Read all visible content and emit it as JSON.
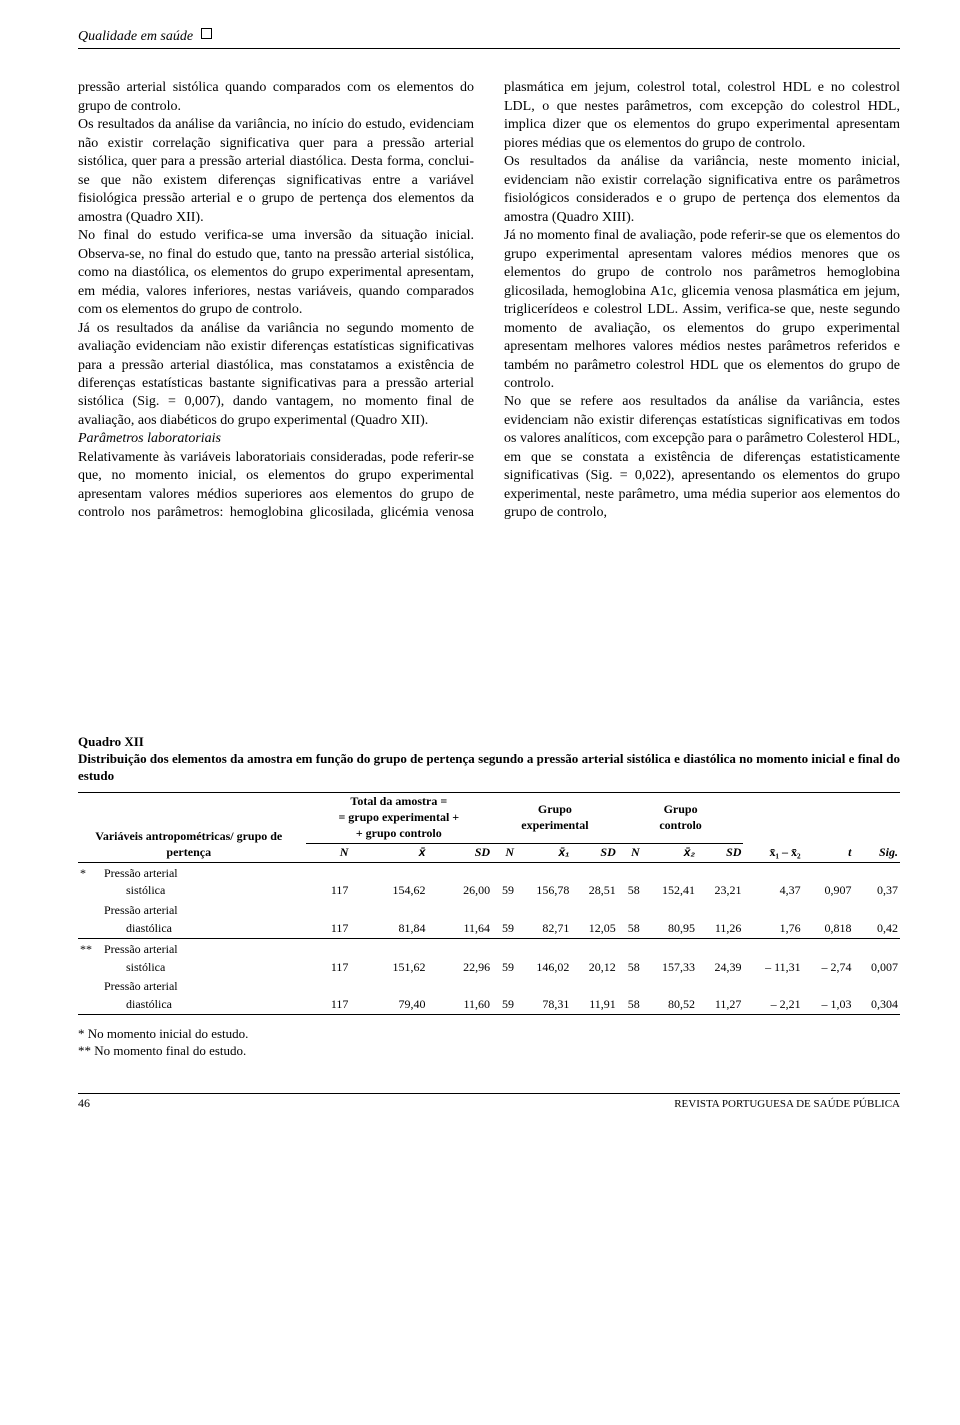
{
  "header": {
    "running": "Qualidade em saúde"
  },
  "body": {
    "p1": "pressão arterial sistólica quando comparados com os elementos do grupo de controlo.",
    "p2": "Os resultados da análise da variância, no início do estudo, evidenciam não existir correlação significativa quer para a pressão arterial sistólica, quer para a pressão arterial diastólica. Desta forma, conclui-se que não existem diferenças significativas entre a variável fisiológica pressão arterial e o grupo de pertença dos elementos da amostra (Quadro XII).",
    "p3": "No final do estudo verifica-se uma inversão da situação inicial. Observa-se, no final do estudo que, tanto na pressão arterial sistólica, como na diastólica, os elementos do grupo experimental apresentam, em média, valores inferiores, nestas variáveis, quando comparados com os elementos do grupo de controlo.",
    "p4": "Já os resultados da análise da variância no segundo momento de avaliação evidenciam não existir diferenças estatísticas significativas para a pressão arterial diastólica, mas constatamos a existência de diferenças estatísticas bastante significativas para a pressão arterial sistólica (Sig. = 0,007), dando vantagem, no momento final de avaliação, aos diabéticos do grupo experimental (Quadro XII).",
    "p5": "Parâmetros laboratoriais",
    "p6a": "Relativamente às variáveis laboratoriais consideradas, pode referir-se que, no momento inicial, os elementos do grupo experimental apresentam valores médios superiores aos elementos do grupo de con",
    "p6b": "trolo nos parâmetros: hemoglobina glicosilada, glicémia venosa plasmática em jejum, colestrol total, colestrol HDL e no colestrol LDL, o que nestes parâmetros, com excepção do colestrol HDL, implica dizer que os elementos do grupo experimental apresentam piores médias que os elementos do grupo de controlo.",
    "p7": "Os resultados da análise da variância, neste momento inicial, evidenciam não existir correlação significativa entre os parâmetros fisiológicos considerados e o grupo de pertença dos elementos da amostra (Quadro XIII).",
    "p8": "Já no momento final de avaliação, pode referir-se que os elementos do grupo experimental apresentam valores médios menores que os elementos do grupo de controlo nos parâmetros hemoglobina glicosilada, hemoglobina A1c, glicemia venosa plasmática em jejum, triglicerídeos e colestrol LDL. Assim, verifica-se que, neste segundo momento de avaliação, os elementos do grupo experimental apresentam melhores valores médios nestes parâmetros referidos e também no parâmetro colestrol HDL que os elementos do grupo de controlo.",
    "p9": "No que se refere aos resultados da análise da variância, estes evidenciam não existir diferenças estatísticas significativas em todos os valores analíticos, com excepção para o parâmetro Colesterol HDL, em que se constata a existência de diferenças estatisticamente significativas (Sig. = 0,022), apresentando os elementos do grupo experimental, neste parâmetro, uma média superior aos elementos do grupo de controlo,"
  },
  "table": {
    "title": "Quadro XII",
    "caption": "Distribuição dos elementos da amostra em função do grupo de pertença segundo a pressão arterial sistólica e diastólica no momento inicial e final do estudo",
    "group_headers": {
      "vars": "Variáveis antropométricas/\ngrupo de pertença",
      "total": "Total da amostra =\n= grupo experimental +\n+ grupo controlo",
      "exp": "Grupo\nexperimental",
      "ctrl": "Grupo\ncontrolo",
      "diff": "x̄₁ – x̄₂",
      "t": "t",
      "sig": "Sig."
    },
    "sub_headers": [
      "N",
      "x̄",
      "SD",
      "N",
      "x̄₁",
      "SD",
      "N",
      "x̄₂",
      "SD"
    ],
    "rows": [
      {
        "marker": "*",
        "label": "Pressão arterial",
        "sub": "sistólica",
        "N": 117,
        "xbar": "154,62",
        "sd": "26,00",
        "Ne": 59,
        "xbe": "156,78",
        "sde": "28,51",
        "Nc": 58,
        "xbc": "152,41",
        "sdc": "23,21",
        "diff": "4,37",
        "t": "0,907",
        "sig": "0,37"
      },
      {
        "marker": "",
        "label": "Pressão arterial",
        "sub": "diastólica",
        "N": 117,
        "xbar": "81,84",
        "sd": "11,64",
        "Ne": 59,
        "xbe": "82,71",
        "sde": "12,05",
        "Nc": 58,
        "xbc": "80,95",
        "sdc": "11,26",
        "diff": "1,76",
        "t": "0,818",
        "sig": "0,42"
      },
      {
        "marker": "**",
        "label": "Pressão arterial",
        "sub": "sistólica",
        "N": 117,
        "xbar": "151,62",
        "sd": "22,96",
        "Ne": 59,
        "xbe": "146,02",
        "sde": "20,12",
        "Nc": 58,
        "xbc": "157,33",
        "sdc": "24,39",
        "diff": "– 11,31",
        "t": "– 2,74",
        "sig": "0,007"
      },
      {
        "marker": "",
        "label": "Pressão arterial",
        "sub": "diastólica",
        "N": 117,
        "xbar": "79,40",
        "sd": "11,60",
        "Ne": 59,
        "xbe": "78,31",
        "sde": "11,91",
        "Nc": 58,
        "xbc": "80,52",
        "sdc": "11,27",
        "diff": "– 2,21",
        "t": "– 1,03",
        "sig": "0,304"
      }
    ],
    "footnotes": [
      "* No momento inicial do estudo.",
      "** No momento final do estudo."
    ]
  },
  "footer": {
    "page": "46",
    "journal": "REVISTA PORTUGUESA DE SAÚDE PÚBLICA"
  }
}
